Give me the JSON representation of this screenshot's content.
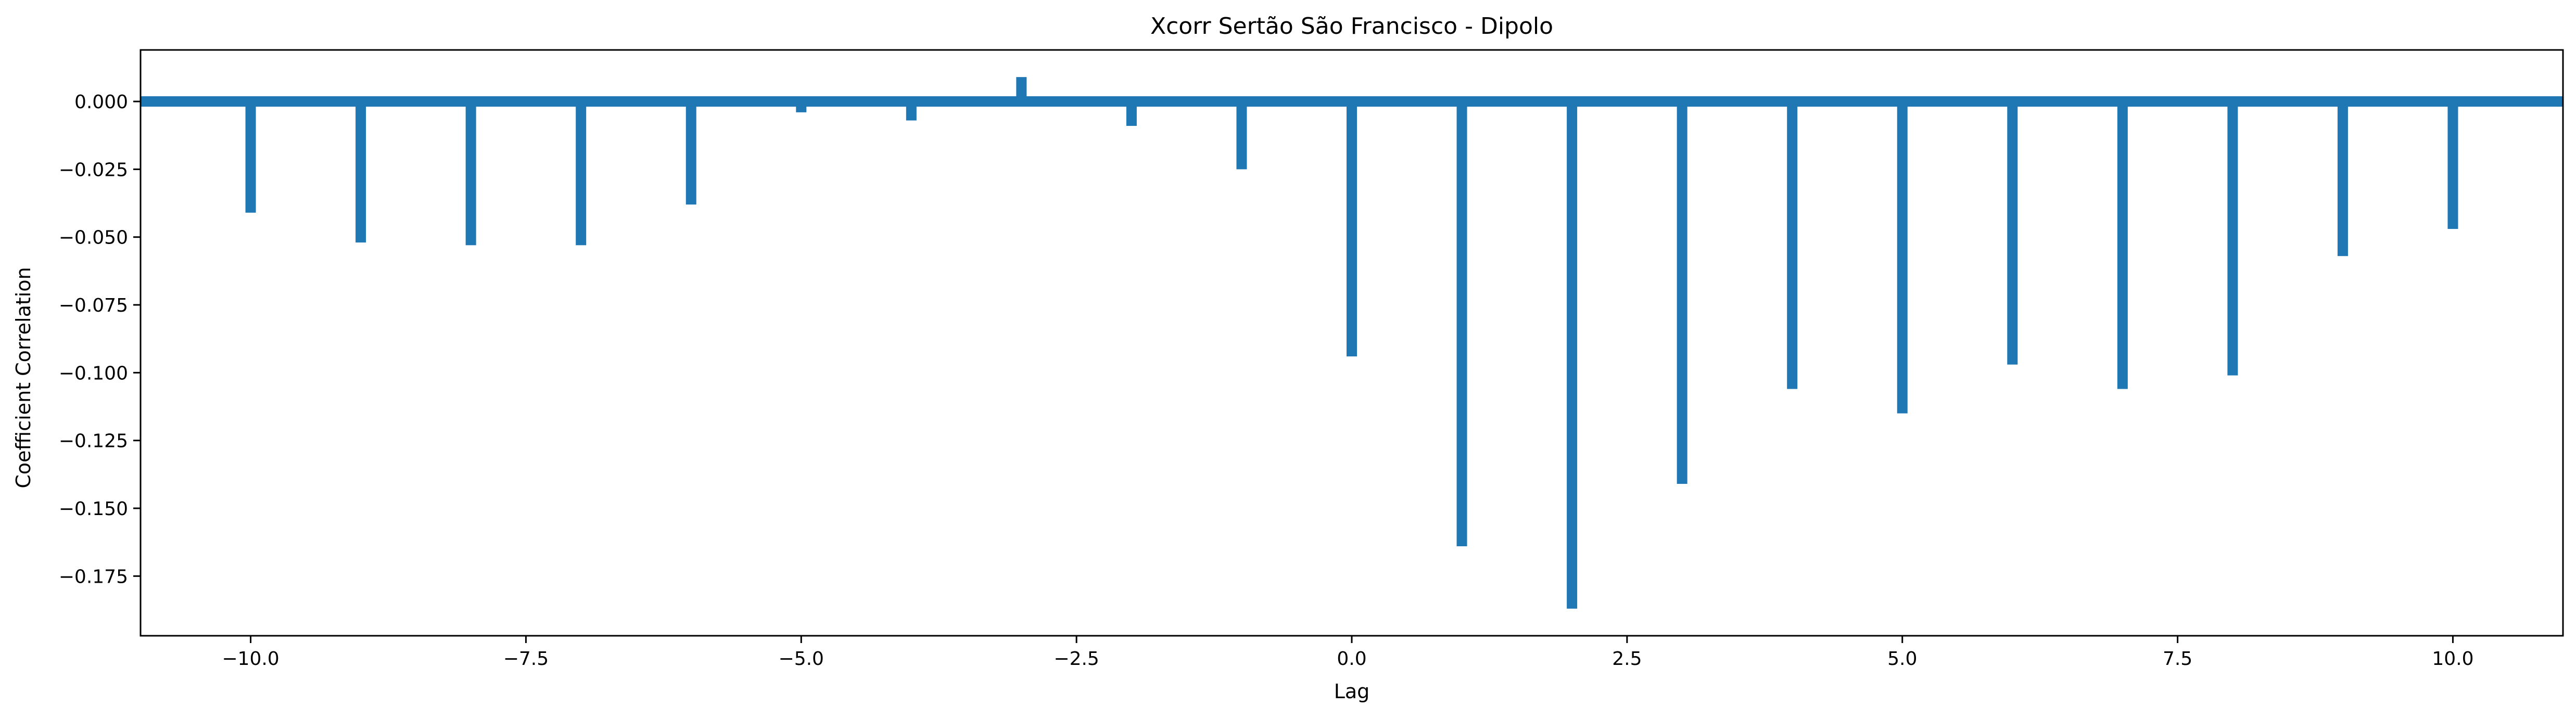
{
  "chart_data": {
    "type": "bar",
    "title": "Xcorr Sertão São Francisco - Dipolo",
    "xlabel": "Lag",
    "ylabel": "Coefficient Correlation",
    "xlim": [
      -11.0,
      11.0
    ],
    "ylim": [
      -0.197,
      0.019
    ],
    "x": [
      -10,
      -9,
      -8,
      -7,
      -6,
      -5,
      -4,
      -3,
      -2,
      -1,
      0,
      1,
      2,
      3,
      4,
      5,
      6,
      7,
      8,
      9,
      10
    ],
    "values": [
      -0.041,
      -0.052,
      -0.053,
      -0.053,
      -0.038,
      -0.004,
      -0.007,
      0.009,
      -0.009,
      -0.025,
      -0.094,
      -0.164,
      -0.187,
      -0.141,
      -0.106,
      -0.115,
      -0.097,
      -0.106,
      -0.101,
      -0.057,
      -0.047
    ],
    "xticks": [
      -10.0,
      -7.5,
      -5.0,
      -2.5,
      0.0,
      2.5,
      5.0,
      7.5,
      10.0
    ],
    "xtick_labels": [
      "−10.0",
      "−7.5",
      "−5.0",
      "−2.5",
      "0.0",
      "2.5",
      "5.0",
      "7.5",
      "10.0"
    ],
    "yticks": [
      0.0,
      -0.025,
      -0.05,
      -0.075,
      -0.1,
      -0.125,
      -0.15,
      -0.175
    ],
    "ytick_labels": [
      "0.000",
      "−0.025",
      "−0.050",
      "−0.075",
      "−0.100",
      "−0.125",
      "−0.150",
      "−0.175"
    ],
    "baseline": 0.0,
    "grid": false,
    "color": "#1f77b4"
  }
}
